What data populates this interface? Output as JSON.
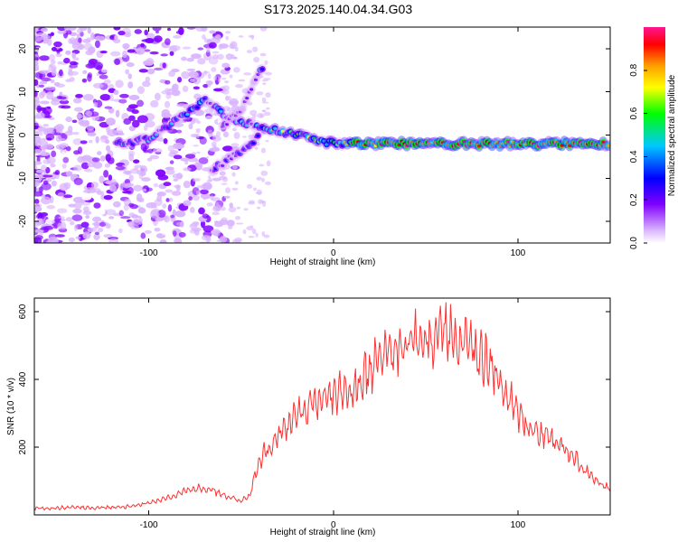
{
  "title": "S173.2025.140.04.34.G03",
  "chart_data": [
    {
      "type": "heatmap",
      "xlabel": "Height of straight line (km)",
      "ylabel": "Frequency (Hz)",
      "xlim": [
        -162,
        150
      ],
      "ylim": [
        -25,
        25
      ],
      "xticks": [
        -100,
        0,
        100
      ],
      "yticks": [
        -20,
        -10,
        0,
        10,
        20
      ],
      "grid": false,
      "colorbar": {
        "label": "Normalized spectral amplitude",
        "range": [
          0,
          1
        ],
        "ticks": [
          "0.0",
          "0.2",
          "0.4",
          "0.6",
          "0.8"
        ],
        "colors": [
          "#ffffff",
          "#d9b3ff",
          "#7f00ff",
          "#0000ff",
          "#00c8ff",
          "#00ff00",
          "#ffff00",
          "#ffa000",
          "#ff0000",
          "#ff1493"
        ]
      },
      "ridges": [
        {
          "x": [
            -115,
            -100,
            -90,
            -80,
            -70,
            -60,
            -50,
            -40,
            -30,
            -20,
            -10,
            0,
            10,
            50,
            80,
            100,
            150
          ],
          "y": [
            -2,
            -1,
            2,
            5,
            8,
            5,
            3,
            2,
            1,
            0,
            -1,
            -2,
            -2,
            -2,
            -2,
            -2,
            -2
          ]
        },
        {
          "x": [
            -65,
            -55,
            -45,
            -40
          ],
          "y": [
            -8,
            -5,
            -2,
            0
          ]
        },
        {
          "x": [
            -60,
            -50,
            -45,
            -40
          ],
          "y": [
            2,
            6,
            10,
            15
          ]
        }
      ]
    },
    {
      "type": "line",
      "xlabel": "Height of straight line (km)",
      "ylabel": "SNR (10 * v/v)",
      "xlim": [
        -162,
        150
      ],
      "ylim": [
        0,
        640
      ],
      "xticks": [
        -100,
        0,
        100
      ],
      "yticks": [
        200,
        400,
        600
      ],
      "grid": false,
      "series": [
        {
          "color": "#ff3030",
          "x": [
            -162,
            -150,
            -140,
            -130,
            -120,
            -110,
            -100,
            -90,
            -80,
            -70,
            -60,
            -50,
            -45,
            -42,
            -40,
            -35,
            -30,
            -25,
            -20,
            -15,
            -10,
            -5,
            0,
            5,
            8,
            10,
            15,
            20,
            25,
            30,
            35,
            40,
            45,
            50,
            55,
            60,
            65,
            70,
            75,
            80,
            85,
            90,
            95,
            100,
            105,
            110,
            115,
            120,
            125,
            130,
            135,
            140,
            145,
            150
          ],
          "y": [
            20,
            20,
            22,
            20,
            22,
            25,
            35,
            50,
            70,
            80,
            60,
            40,
            60,
            130,
            160,
            200,
            230,
            260,
            300,
            320,
            330,
            340,
            350,
            360,
            365,
            370,
            400,
            430,
            460,
            480,
            500,
            510,
            520,
            520,
            520,
            530,
            530,
            520,
            500,
            470,
            440,
            400,
            350,
            300,
            260,
            240,
            230,
            220,
            200,
            170,
            140,
            110,
            90,
            80
          ]
        }
      ]
    }
  ]
}
